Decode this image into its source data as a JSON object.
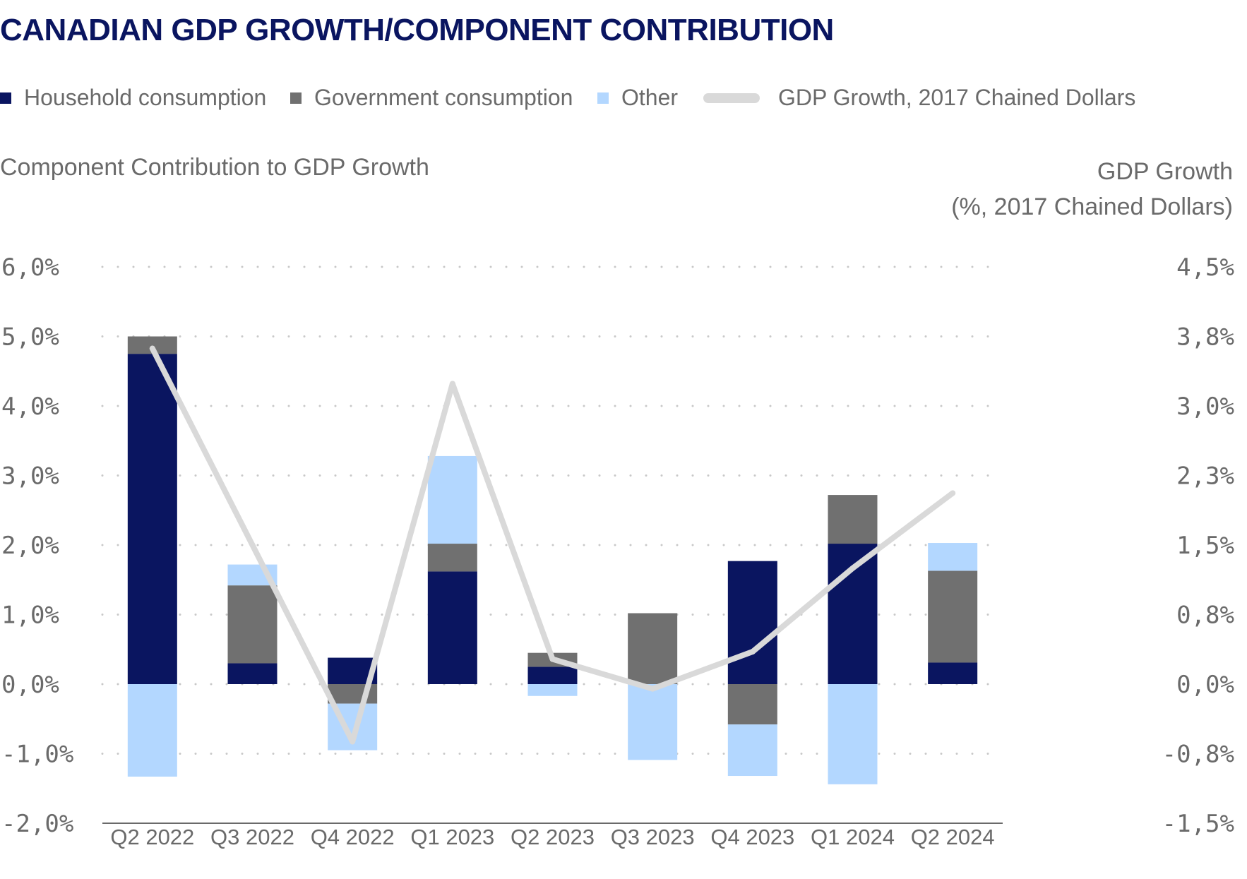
{
  "title": "CANADIAN GDP GROWTH/COMPONENT CONTRIBUTION",
  "legend": {
    "household": "Household consumption",
    "government": "Government consumption",
    "other": "Other",
    "gdp": "GDP Growth, 2017 Chained Dollars"
  },
  "axis_titles": {
    "left": "Component Contribution to GDP Growth",
    "right_line1": "GDP Growth",
    "right_line2": "(%, 2017 Chained Dollars)"
  },
  "colors": {
    "household": "#0a1560",
    "government": "#707070",
    "other": "#b3d7ff",
    "gdp_line": "#d9d9d9",
    "gridline": "#c8c8c8",
    "axis": "#6a6a6a"
  },
  "chart_data": {
    "type": "bar",
    "stacked": true,
    "title": "CANADIAN GDP GROWTH/COMPONENT CONTRIBUTION",
    "categories": [
      "Q2 2022",
      "Q3 2022",
      "Q4 2022",
      "Q1 2023",
      "Q2 2023",
      "Q3 2023",
      "Q4 2023",
      "Q1 2024",
      "Q2 2024"
    ],
    "series": [
      {
        "name": "Household consumption",
        "type": "bar",
        "values": [
          4.75,
          0.3,
          0.38,
          1.62,
          0.25,
          0.0,
          1.77,
          2.02,
          0.31
        ]
      },
      {
        "name": "Government consumption",
        "type": "bar",
        "values": [
          0.25,
          1.12,
          -0.28,
          0.4,
          0.2,
          1.02,
          -0.58,
          0.7,
          1.32
        ]
      },
      {
        "name": "Other",
        "type": "bar",
        "values": [
          -1.33,
          0.3,
          -0.67,
          1.26,
          -0.17,
          -1.09,
          -0.74,
          -1.44,
          0.4
        ]
      },
      {
        "name": "GDP Growth, 2017 Chained Dollars",
        "type": "line",
        "axis": "right",
        "values": [
          3.62,
          1.5,
          -0.62,
          3.24,
          0.27,
          -0.05,
          0.35,
          1.25,
          2.06
        ]
      }
    ],
    "left_axis": {
      "label": "Component Contribution to GDP Growth",
      "ylim": [
        -2.0,
        6.0
      ],
      "ticks": [
        6.0,
        5.0,
        4.0,
        3.0,
        2.0,
        1.0,
        0.0,
        -1.0,
        -2.0
      ],
      "tick_labels": [
        "6,0%",
        "5,0%",
        "4,0%",
        "3,0%",
        "2,0%",
        "1,0%",
        "0,0%",
        "-1,0%",
        "-2,0%"
      ]
    },
    "right_axis": {
      "label": "GDP Growth (%, 2017 Chained Dollars)",
      "ylim": [
        -1.5,
        4.5
      ],
      "ticks": [
        4.5,
        3.75,
        3.0,
        2.25,
        1.5,
        0.75,
        0.0,
        -0.75,
        -1.5
      ],
      "tick_labels": [
        "4,5%",
        "3,8%",
        "3,0%",
        "2,3%",
        "1,5%",
        "0,8%",
        "0,0%",
        "-0,8%",
        "-1,5%"
      ]
    },
    "grid": "dotted horizontal",
    "legend_position": "top"
  }
}
